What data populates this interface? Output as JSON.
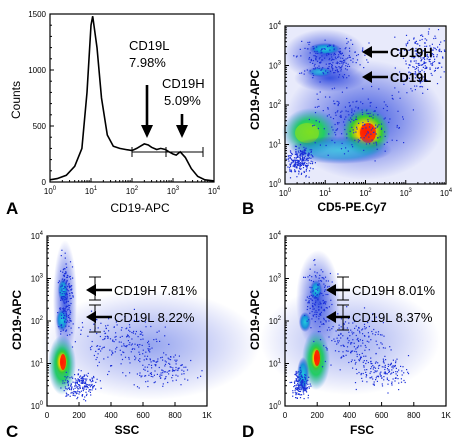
{
  "chart_data": [
    {
      "panel": "A",
      "type": "line",
      "xlabel": "CD19-APC",
      "ylabel": "Counts",
      "xscale": "log",
      "xlim": [
        1,
        10000
      ],
      "ylim": [
        0,
        1500
      ],
      "xticks": [
        "10^0",
        "10^1",
        "10^2",
        "10^3",
        "10^4"
      ],
      "yticks": [
        "0",
        "500",
        "1000",
        "1500"
      ],
      "series": [
        {
          "x": [
            1,
            1.5,
            2.5,
            4,
            6,
            8,
            10,
            11,
            14,
            18,
            25,
            35,
            50,
            70,
            100,
            130,
            160,
            200,
            250,
            300,
            400,
            500,
            650,
            800,
            1000,
            1200,
            1500,
            2000,
            2800,
            4000,
            6000,
            10000
          ],
          "values": [
            20,
            30,
            60,
            140,
            300,
            800,
            1400,
            1480,
            1200,
            750,
            420,
            320,
            300,
            290,
            280,
            300,
            320,
            340,
            330,
            310,
            290,
            300,
            290,
            270,
            250,
            240,
            270,
            220,
            120,
            50,
            20,
            10
          ]
        }
      ],
      "gates": [
        {
          "label": "CD19L",
          "value": "7.98%",
          "range": [
            130,
            1000
          ]
        },
        {
          "label": "CD19H",
          "value": "5.09%",
          "range": [
            1000,
            6000
          ]
        }
      ]
    },
    {
      "panel": "B",
      "type": "scatter",
      "xlabel": "CD5-PE.Cy7",
      "ylabel": "CD19-APC",
      "xscale": "log",
      "yscale": "log",
      "xlim": [
        1,
        10000
      ],
      "ylim": [
        1,
        10000
      ],
      "annotations": [
        "CD19H",
        "CD19L"
      ]
    },
    {
      "panel": "C",
      "type": "scatter",
      "xlabel": "SSC",
      "ylabel": "CD19-APC",
      "yscale": "log",
      "xlim": [
        0,
        1000
      ],
      "ylim": [
        1,
        10000
      ],
      "xticks": [
        "0",
        "200",
        "400",
        "600",
        "800",
        "1K"
      ],
      "annotations": [
        {
          "label": "CD19H",
          "value": "7.81%"
        },
        {
          "label": "CD19L",
          "value": "8.22%"
        }
      ]
    },
    {
      "panel": "D",
      "type": "scatter",
      "xlabel": "FSC",
      "ylabel": "CD19-APC",
      "yscale": "log",
      "xlim": [
        0,
        1000
      ],
      "ylim": [
        1,
        10000
      ],
      "xticks": [
        "0",
        "200",
        "400",
        "600",
        "800",
        "1K"
      ],
      "annotations": [
        {
          "label": "CD19H",
          "value": "8.01%"
        },
        {
          "label": "CD19L",
          "value": "8.37%"
        }
      ]
    }
  ],
  "panels": {
    "A": {
      "letter": "A",
      "xlabel": "CD19-APC",
      "ylabel": "Counts",
      "gate1_label": "CD19L",
      "gate1_value": "7.98%",
      "gate2_label": "CD19H",
      "gate2_value": "5.09%"
    },
    "B": {
      "letter": "B",
      "xlabel": "CD5-PE.Cy7",
      "ylabel": "CD19-APC",
      "ann1": "CD19H",
      "ann2": "CD19L"
    },
    "C": {
      "letter": "C",
      "xlabel": "SSC",
      "ylabel": "CD19-APC",
      "ann1": "CD19H 7.81%",
      "ann2": "CD19L 8.22%"
    },
    "D": {
      "letter": "D",
      "xlabel": "FSC",
      "ylabel": "CD19-APC",
      "ann1": "CD19H 8.01%",
      "ann2": "CD19L 8.37%"
    }
  },
  "colors": {
    "density_low": "#1a2fd8",
    "density_mid": "#2ecc40",
    "density_high": "#ff1a00",
    "line": "#000000"
  }
}
